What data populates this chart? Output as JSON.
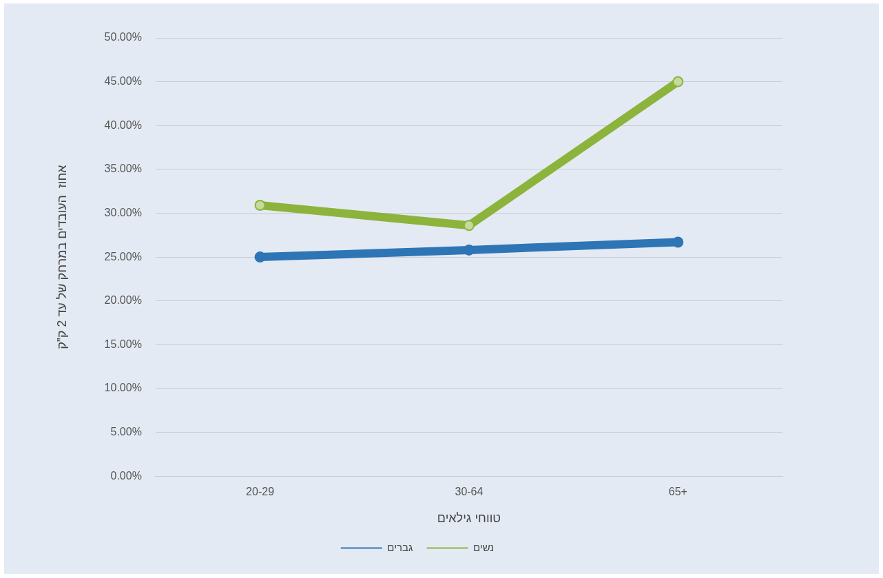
{
  "chart_data": {
    "type": "line",
    "xlabel": "טווחי גילאים",
    "ylabel": "אחוז  העובדים במרחק של עד 2 ק”ק",
    "categories": [
      "20-29",
      "30-64",
      "65+"
    ],
    "series": [
      {
        "name": "גברים",
        "color": "#2e75b6",
        "values": [
          25.0,
          25.8,
          26.7
        ]
      },
      {
        "name": "נשים",
        "color": "#8cb43c",
        "values": [
          30.9,
          28.6,
          45.0
        ]
      }
    ],
    "ylim": [
      0,
      50
    ],
    "yticks": [
      {
        "value": 0,
        "label": "0.00%"
      },
      {
        "value": 5,
        "label": "5.00%"
      },
      {
        "value": 10,
        "label": "10.00%"
      },
      {
        "value": 15,
        "label": "15.00%"
      },
      {
        "value": 20,
        "label": "20.00%"
      },
      {
        "value": 25,
        "label": "25.00%"
      },
      {
        "value": 30,
        "label": "30.00%"
      },
      {
        "value": 35,
        "label": "35.00%"
      },
      {
        "value": 40,
        "label": "40.00%"
      },
      {
        "value": 45,
        "label": "45.00%"
      },
      {
        "value": 50,
        "label": "50.00%"
      }
    ],
    "grid": "y",
    "legend": "bottom",
    "marker": "circle",
    "line_style": "solid"
  }
}
